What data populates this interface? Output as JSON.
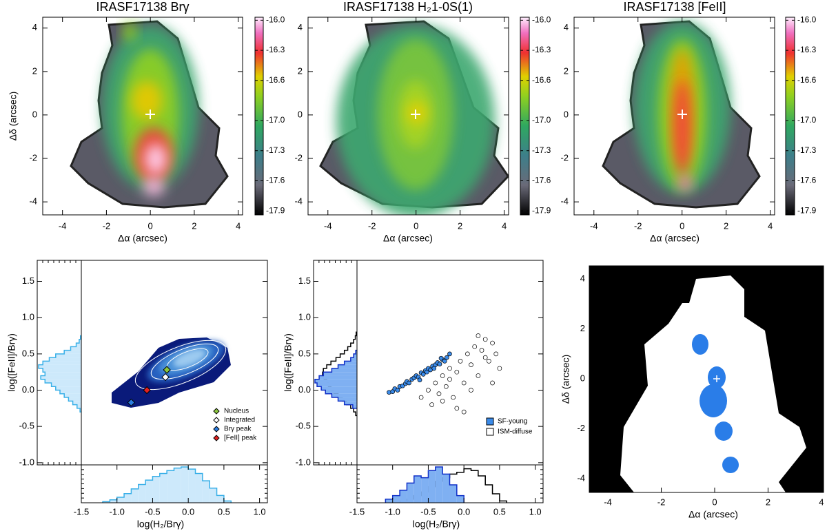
{
  "chart_data": [
    {
      "type": "map",
      "title": "IRASF17138 Brγ",
      "xlabel": "Δα (arcsec)",
      "ylabel": "Δδ (arcsec)",
      "xlim": [
        -4.9,
        4.2
      ],
      "ylim": [
        -4.6,
        4.5
      ],
      "xticks": [
        -4,
        -2,
        0,
        2,
        4
      ],
      "yticks": [
        -4,
        -2,
        0,
        2,
        4
      ],
      "clim": [
        -17.94,
        -15.97
      ],
      "cticks": [
        {
          "value": -16.0,
          "label": "-16.0"
        },
        -16.3,
        -16.6,
        {
          "value": -17.0,
          "label": "-17.0"
        },
        -17.3,
        -17.6,
        -17.9
      ]
    },
    {
      "type": "map",
      "title": "IRASF17138 H₂1-0S(1)",
      "xlabel": "Δα (arcsec)",
      "xlim": [
        -4.9,
        4.2
      ],
      "ylim": [
        -4.6,
        4.5
      ],
      "xticks": [
        -4,
        -2,
        0,
        2,
        4
      ],
      "yticks": [
        -4,
        -2,
        0,
        2,
        4
      ],
      "clim": [
        -17.94,
        -15.97
      ],
      "cticks": [
        {
          "value": -16.0,
          "label": "-16.0"
        },
        -16.3,
        -16.6,
        {
          "value": -17.0,
          "label": "-17.0"
        },
        -17.3,
        -17.6,
        -17.9
      ]
    },
    {
      "type": "map",
      "title": "IRASF17138 [FeII]",
      "xlabel": "Δα (arcsec)",
      "xlim": [
        -4.9,
        4.2
      ],
      "ylim": [
        -4.6,
        4.5
      ],
      "xticks": [
        -4,
        -2,
        0,
        2,
        4
      ],
      "yticks": [
        -4,
        -2,
        0,
        2,
        4
      ],
      "clim": [
        -17.94,
        -15.97
      ],
      "cticks": [
        {
          "value": -16.0,
          "label": "-16.0"
        },
        -16.3,
        -16.6,
        {
          "value": -17.0,
          "label": "-17.0"
        },
        -17.3,
        -17.6,
        -17.9
      ]
    },
    {
      "type": "diagnostic",
      "xlabel": "log(H₂/Brγ)",
      "ylabel": "log([FeII]/Brγ)",
      "xlim": [
        -1.5,
        1.11
      ],
      "ylim": [
        -1.03,
        1.79
      ],
      "xticks": [
        -1.5,
        {
          "value": -1.0,
          "label": "-1.0"
        },
        -0.5,
        {
          "value": 0.0,
          "label": "0.0"
        },
        0.5,
        {
          "value": 1.0,
          "label": "1.0"
        }
      ],
      "yticks": [
        {
          "value": -1.0,
          "label": "-1.0"
        },
        -0.5,
        {
          "value": 0.0,
          "label": "0.0"
        },
        0.5,
        {
          "value": 1.0,
          "label": "1.0"
        },
        1.5
      ],
      "hist_color": "#3ab0e8",
      "hist_fill": "#cde9fb",
      "xhist": {
        "bins": [
          -1.2,
          -1.1,
          -1.0,
          -0.9,
          -0.8,
          -0.7,
          -0.6,
          -0.5,
          -0.4,
          -0.3,
          -0.2,
          -0.1,
          0.0,
          0.1,
          0.2,
          0.3,
          0.4,
          0.5,
          0.6
        ],
        "counts": [
          0.03,
          0.08,
          0.15,
          0.25,
          0.38,
          0.5,
          0.62,
          0.72,
          0.8,
          0.88,
          0.95,
          0.98,
          0.92,
          0.8,
          0.6,
          0.4,
          0.2,
          0.05
        ]
      },
      "yhist": {
        "bins": [
          -0.3,
          -0.25,
          -0.2,
          -0.15,
          -0.1,
          -0.05,
          0.0,
          0.05,
          0.1,
          0.15,
          0.2,
          0.25,
          0.3,
          0.35,
          0.4,
          0.45,
          0.5,
          0.55,
          0.6,
          0.65,
          0.7,
          0.75
        ],
        "counts": [
          0.03,
          0.1,
          0.2,
          0.3,
          0.4,
          0.5,
          0.6,
          0.7,
          0.85,
          0.95,
          0.85,
          0.9,
          1.0,
          0.9,
          0.75,
          0.6,
          0.4,
          0.25,
          0.12,
          0.05,
          0.02
        ]
      },
      "series": [
        {
          "name": "Nucleus",
          "color": "#8cc63f",
          "x": [
            -0.3
          ],
          "values": [
            0.28
          ]
        },
        {
          "name": "Integrated",
          "color": "#ffffff",
          "x": [
            -0.32
          ],
          "values": [
            0.18
          ]
        },
        {
          "name": "Brγ peak",
          "color": "#2a7de0",
          "x": [
            -0.8
          ],
          "values": [
            -0.17
          ]
        },
        {
          "name": "[FeII] peak",
          "color": "#e02020",
          "x": [
            -0.58
          ],
          "values": [
            0.0
          ]
        }
      ]
    },
    {
      "type": "diagnostic",
      "xlabel": "log(H₂/Brγ)",
      "ylabel": "log([FeII]/Brγ)",
      "xlim": [
        -1.5,
        1.11
      ],
      "ylim": [
        -1.03,
        1.79
      ],
      "xticks": [
        -1.5,
        {
          "value": -1.0,
          "label": "-1.0"
        },
        -0.5,
        {
          "value": 0.0,
          "label": "0.0"
        },
        0.5,
        {
          "value": 1.0,
          "label": "1.0"
        }
      ],
      "yticks": [
        {
          "value": -1.0,
          "label": "-1.0"
        },
        -0.5,
        {
          "value": 0.0,
          "label": "0.0"
        },
        0.5,
        {
          "value": 1.0,
          "label": "1.0"
        },
        1.5
      ],
      "series": [
        {
          "name": "SF-young",
          "color": "#3a8ae8",
          "edge": "#1030c8",
          "fill": "#7fb0f2",
          "x": [
            -1.05,
            -1.0,
            -0.97,
            -0.93,
            -0.9,
            -0.86,
            -0.82,
            -0.8,
            -0.77,
            -0.73,
            -0.7,
            -0.67,
            -0.64,
            -0.6,
            -0.57,
            -0.54,
            -0.5,
            -0.47,
            -0.44,
            -0.4,
            -0.37,
            -0.34,
            -0.3,
            -0.27,
            -0.24,
            -0.2,
            -0.62,
            -0.52,
            -0.42,
            -0.32
          ],
          "values": [
            -0.03,
            -0.02,
            0.02,
            0.0,
            0.05,
            0.06,
            0.09,
            0.12,
            0.1,
            0.15,
            0.17,
            0.2,
            0.18,
            0.24,
            0.22,
            0.27,
            0.3,
            0.28,
            0.33,
            0.35,
            0.38,
            0.36,
            0.42,
            0.4,
            0.45,
            0.5,
            0.14,
            0.25,
            0.3,
            0.44
          ],
          "xhist": {
            "bins": [
              -1.1,
              -1.0,
              -0.9,
              -0.8,
              -0.7,
              -0.6,
              -0.5,
              -0.4,
              -0.3,
              -0.2,
              -0.1,
              0.0
            ],
            "counts": [
              0.1,
              0.2,
              0.35,
              0.55,
              0.75,
              0.7,
              0.9,
              1.0,
              0.8,
              0.5,
              0.2
            ]
          },
          "yhist": {
            "bins": [
              -0.25,
              -0.2,
              -0.15,
              -0.1,
              -0.05,
              0.0,
              0.05,
              0.1,
              0.15,
              0.2,
              0.25,
              0.3,
              0.35,
              0.4,
              0.45,
              0.5,
              0.55
            ],
            "counts": [
              0.1,
              0.3,
              0.45,
              0.6,
              0.75,
              0.85,
              0.95,
              1.0,
              0.9,
              0.8,
              0.6,
              0.45,
              0.3,
              0.15,
              0.08,
              0.03
            ]
          }
        },
        {
          "name": "ISM-diffuse",
          "color": "#ffffff",
          "edge": "#000000",
          "fill": "none",
          "x": [
            -0.6,
            -0.5,
            -0.45,
            -0.4,
            -0.35,
            -0.3,
            -0.25,
            -0.2,
            -0.15,
            -0.1,
            -0.05,
            0.0,
            0.05,
            0.1,
            0.15,
            0.2,
            0.25,
            0.3,
            0.35,
            0.4,
            0.45,
            0.5,
            -0.1,
            0.0,
            0.1,
            0.2,
            0.3,
            -0.2,
            -0.3,
            0.4
          ],
          "values": [
            -0.1,
            0.0,
            -0.2,
            0.1,
            -0.05,
            0.2,
            0.05,
            0.3,
            -0.1,
            0.25,
            0.4,
            0.1,
            0.5,
            0.35,
            0.6,
            0.2,
            0.55,
            0.7,
            0.4,
            0.65,
            0.5,
            0.3,
            -0.25,
            -0.3,
            0.0,
            0.75,
            0.45,
            0.15,
            -0.15,
            0.1
          ],
          "xhist": {
            "bins": [
              -0.9,
              -0.8,
              -0.7,
              -0.6,
              -0.5,
              -0.4,
              -0.3,
              -0.2,
              -0.1,
              0.0,
              0.1,
              0.2,
              0.3,
              0.4,
              0.5,
              0.6
            ],
            "counts": [
              0.05,
              0.1,
              0.2,
              0.3,
              0.45,
              0.6,
              0.7,
              0.8,
              0.85,
              0.95,
              0.9,
              0.75,
              0.5,
              0.25,
              0.05
            ]
          },
          "yhist": {
            "bins": [
              -0.35,
              -0.3,
              -0.25,
              -0.2,
              -0.15,
              -0.1,
              -0.05,
              0.0,
              0.05,
              0.1,
              0.15,
              0.2,
              0.25,
              0.3,
              0.35,
              0.4,
              0.45,
              0.5,
              0.55,
              0.6,
              0.65,
              0.7,
              0.75,
              0.8
            ],
            "counts": [
              0.03,
              0.08,
              0.15,
              0.25,
              0.35,
              0.45,
              0.55,
              0.62,
              0.68,
              0.72,
              0.78,
              0.82,
              0.8,
              0.72,
              0.62,
              0.5,
              0.4,
              0.3,
              0.22,
              0.15,
              0.08,
              0.04,
              0.02
            ]
          }
        }
      ]
    },
    {
      "type": "mask",
      "xlabel": "Δα (arcsec)",
      "ylabel": "Δδ (arcsec)",
      "xlim": [
        -4.7,
        4.08
      ],
      "ylim": [
        -4.55,
        4.52
      ],
      "xticks": [
        -4,
        -2,
        0,
        2,
        4
      ],
      "yticks": [
        -4,
        -2,
        0,
        2,
        4
      ]
    }
  ]
}
